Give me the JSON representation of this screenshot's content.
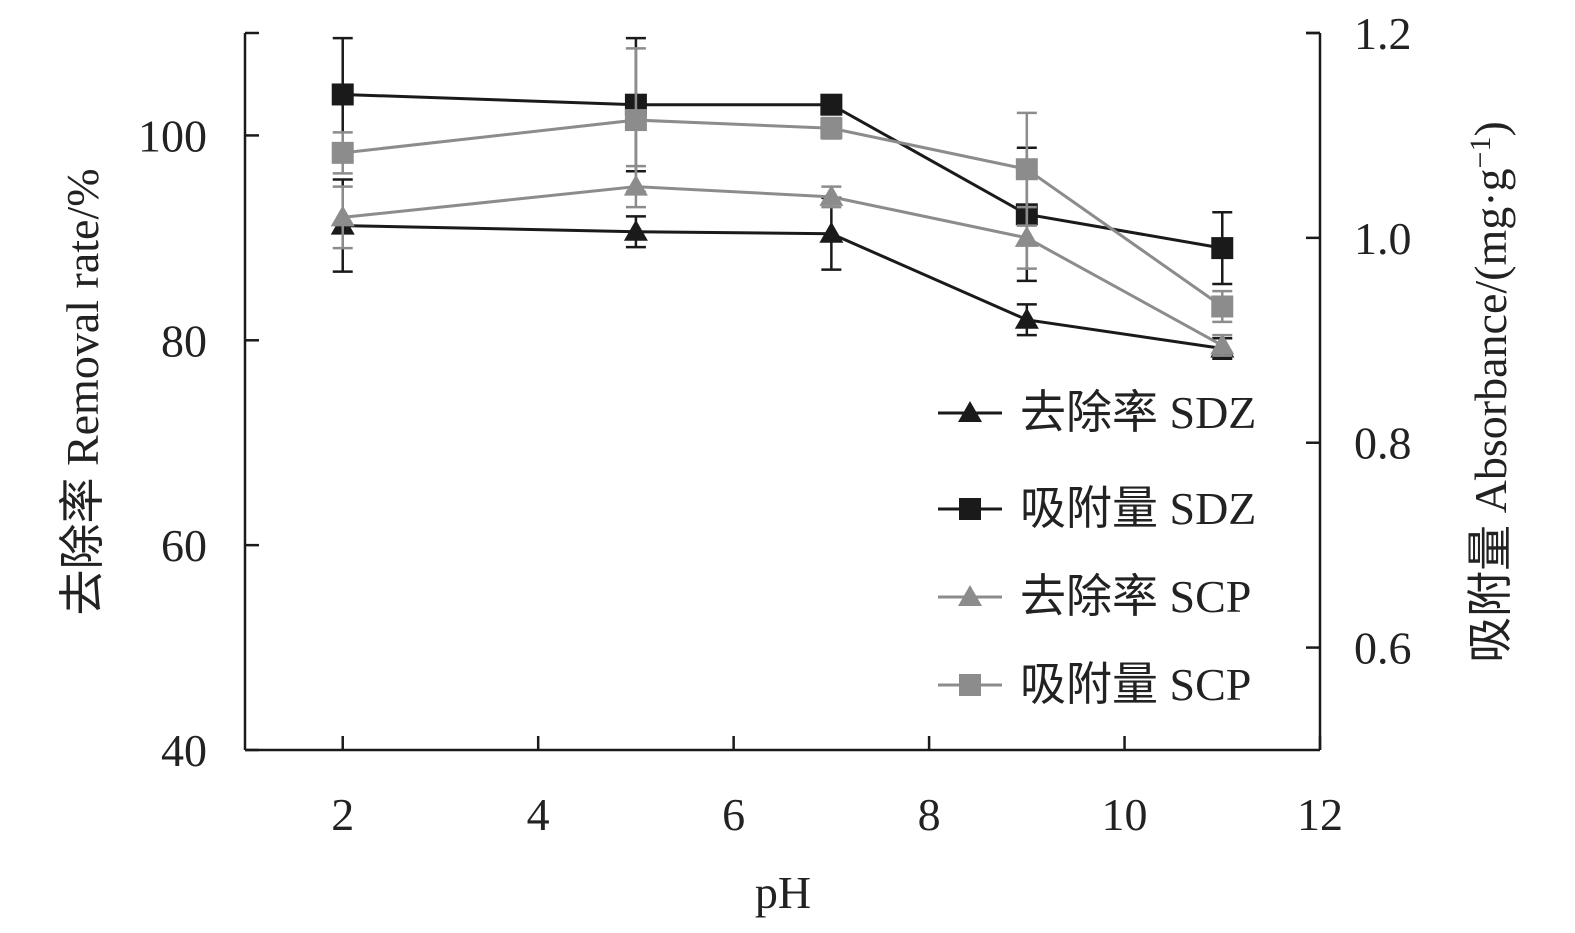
{
  "chart_data": {
    "type": "line",
    "title": "",
    "xlabel": "pH",
    "ylabel_left": "去除率 Removal rate/%",
    "ylabel_right": "吸附量 Absorbance/(mg·g",
    "ylabel_right_sup": "−1",
    "ylabel_right_close": ")",
    "xlim": [
      1,
      12
    ],
    "ylim_left": [
      40,
      110
    ],
    "ylim_right": [
      0.5,
      1.2
    ],
    "xticks": [
      2,
      4,
      6,
      8,
      10,
      12
    ],
    "yticks_left": [
      40,
      60,
      80,
      100
    ],
    "yticks_right": [
      0.6,
      0.8,
      1.0,
      1.2
    ],
    "ytick_labels_right": [
      "0.6",
      "0.8",
      "1.0",
      "1.2"
    ],
    "grid": false,
    "legend_position": "lower-right",
    "x": [
      2,
      5,
      7,
      9,
      11
    ],
    "series": [
      {
        "name": "去除率 SDZ",
        "axis": "left",
        "marker": "triangle",
        "color": "#1a1a1a",
        "values": [
          91.2,
          90.6,
          90.4,
          82.0,
          79.2
        ],
        "errors": [
          4.5,
          1.5,
          3.5,
          1.5,
          1.0
        ]
      },
      {
        "name": "吸附量 SDZ",
        "axis": "right",
        "marker": "square",
        "color": "#1a1a1a",
        "values": [
          1.14,
          1.13,
          1.13,
          1.023,
          0.99
        ],
        "errors": [
          0.055,
          0.065,
          0.0,
          0.065,
          0.035
        ]
      },
      {
        "name": "去除率 SCP",
        "axis": "left",
        "marker": "triangle",
        "color": "#8c8c8c",
        "values": [
          92.0,
          95.0,
          94.0,
          90.0,
          79.5
        ],
        "errors": [
          3.0,
          2.0,
          1.0,
          3.0,
          1.0
        ]
      },
      {
        "name": "吸附量 SCP",
        "axis": "right",
        "marker": "square",
        "color": "#8c8c8c",
        "values": [
          1.083,
          1.115,
          1.107,
          1.067,
          0.933
        ],
        "errors": [
          0.02,
          0.07,
          0.01,
          0.055,
          0.015
        ]
      }
    ]
  }
}
